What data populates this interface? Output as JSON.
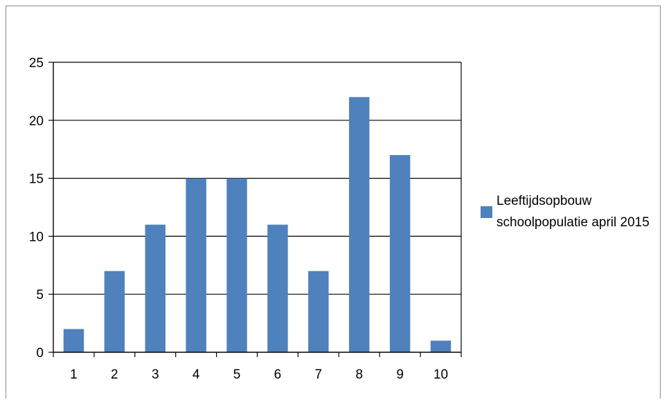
{
  "chart_data": {
    "type": "bar",
    "categories": [
      "1",
      "2",
      "3",
      "4",
      "5",
      "6",
      "7",
      "8",
      "9",
      "10"
    ],
    "series": [
      {
        "name": "Leeftijdsopbouw schoolpopulatie april 2015",
        "values": [
          2,
          7,
          11,
          15,
          15,
          11,
          7,
          22,
          17,
          1
        ]
      }
    ],
    "ylim": [
      0,
      25
    ],
    "yticks": [
      0,
      5,
      10,
      15,
      20,
      25
    ],
    "grid": true,
    "legend_position": "right",
    "bar_color": "#4f81bd"
  }
}
